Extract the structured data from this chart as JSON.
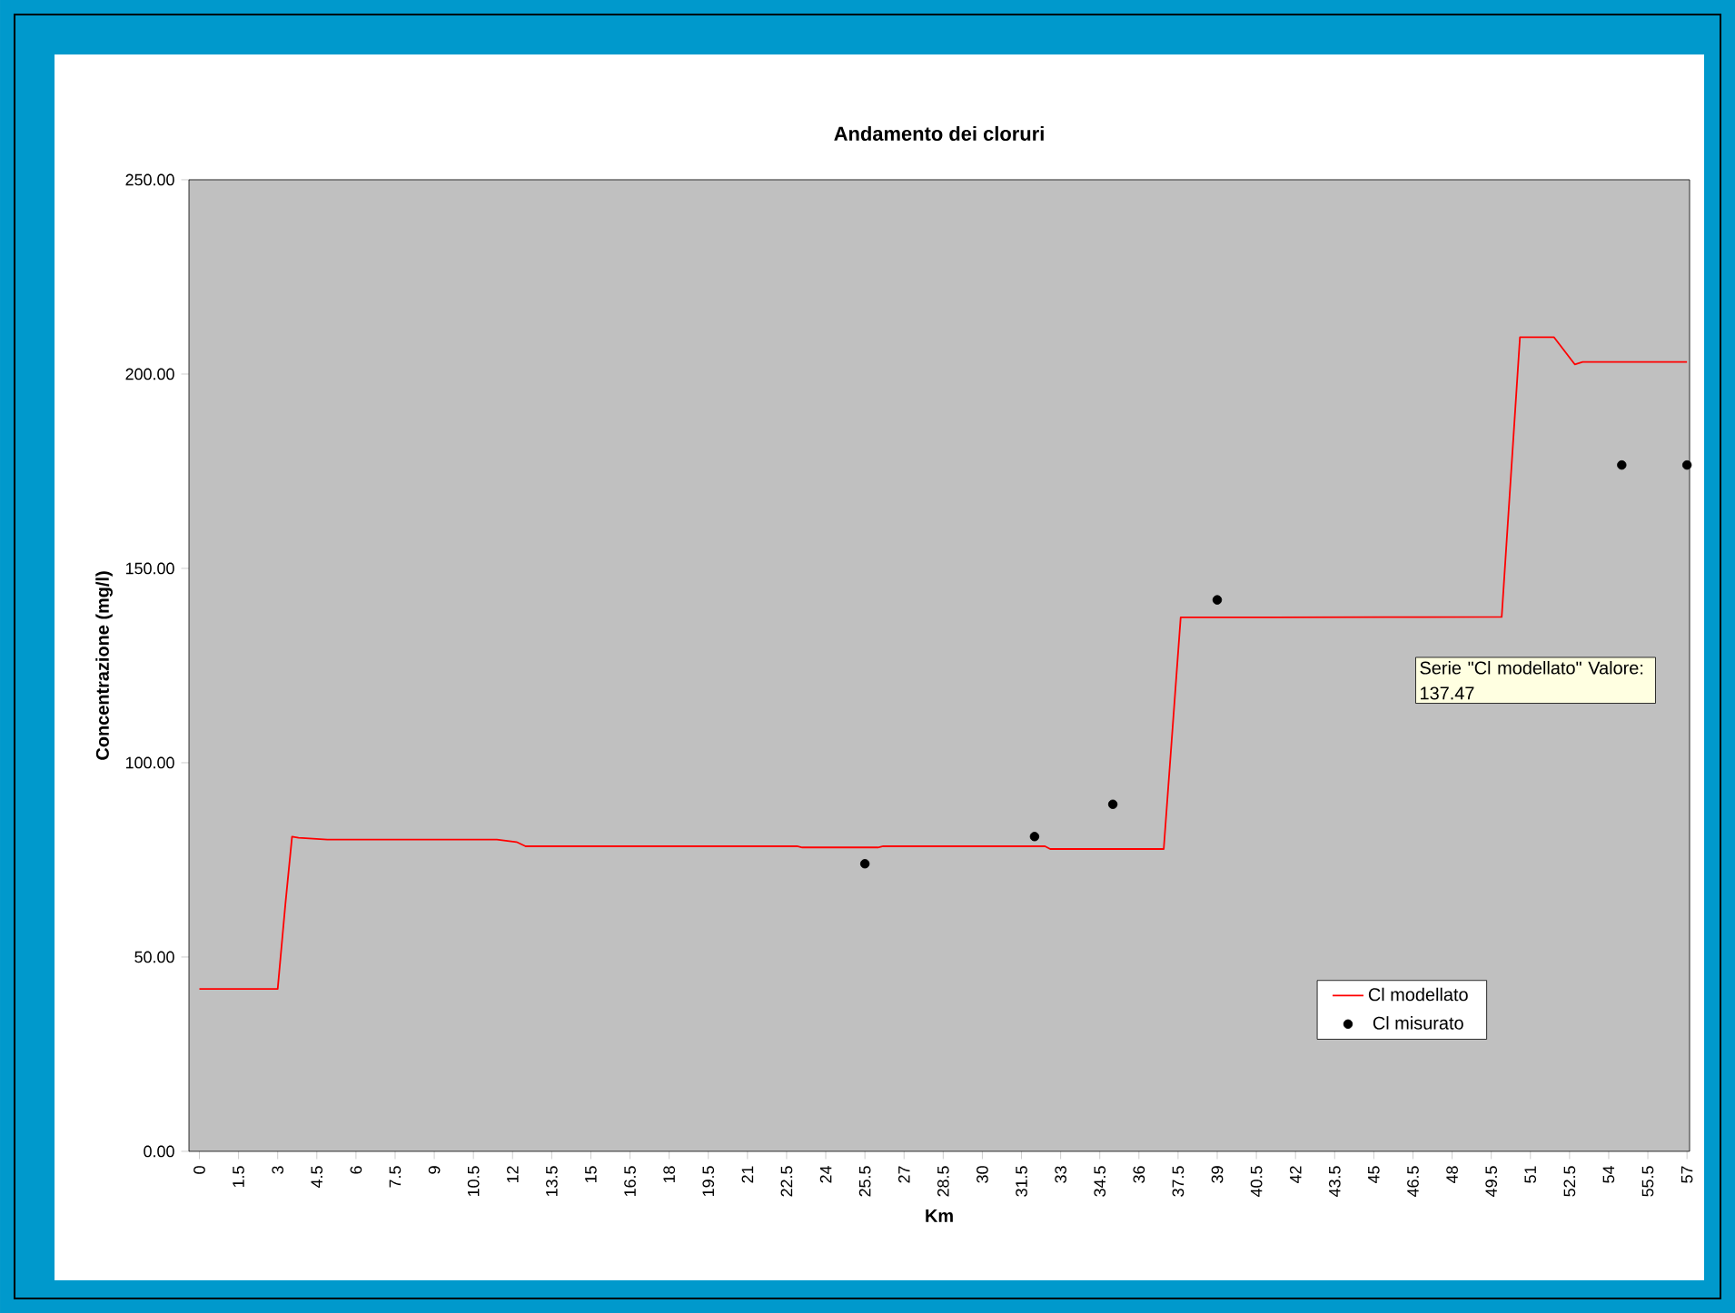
{
  "chart_data": {
    "type": "line",
    "title": "Andamento dei cloruri",
    "xlabel": "Km",
    "ylabel": "Concentrazione (mg/l)",
    "series": [
      {
        "name": "Cl modellato",
        "color": "#ff0000",
        "marker": "none",
        "line_style": "solid",
        "x": [
          0,
          3.0,
          3.3,
          3.55,
          3.8,
          4.9,
          11.4,
          12.15,
          12.5,
          22.9,
          23.1,
          26.0,
          26.2,
          32.4,
          32.6,
          36.95,
          37.6,
          41.0,
          46.8,
          49.9,
          50.6,
          51.9,
          52.7,
          53.0,
          57.0
        ],
        "values": [
          41.8,
          41.8,
          64.0,
          81.0,
          80.7,
          80.2,
          80.2,
          79.6,
          78.5,
          78.5,
          78.2,
          78.2,
          78.5,
          78.5,
          77.8,
          77.8,
          137.4,
          137.4,
          137.47,
          137.5,
          209.5,
          209.5,
          202.5,
          203.1,
          203.1
        ]
      },
      {
        "name": "Cl misurato",
        "type": "scatter",
        "color": "#000000",
        "marker": "circle",
        "x": [
          25.5,
          32.0,
          35.0,
          39.0,
          54.5,
          57.0
        ],
        "values": [
          74.0,
          81.0,
          89.3,
          141.9,
          176.6,
          176.6
        ]
      }
    ],
    "xlim": [
      -0.4,
      57.1
    ],
    "xticks": [
      0,
      1.5,
      3,
      4.5,
      6,
      7.5,
      9,
      10.5,
      12,
      13.5,
      15,
      16.5,
      18,
      19.5,
      21,
      22.5,
      24,
      25.5,
      27,
      28.5,
      30,
      31.5,
      33,
      34.5,
      36,
      37.5,
      39,
      40.5,
      42,
      43.5,
      45,
      46.5,
      48,
      49.5,
      51,
      52.5,
      54,
      55.5,
      57
    ],
    "ylim": [
      0,
      250
    ],
    "yticks": [
      {
        "value": 0,
        "label": "0.00"
      },
      {
        "value": 50,
        "label": "50.00"
      },
      {
        "value": 100,
        "label": "100.00"
      },
      {
        "value": 150,
        "label": "150.00"
      },
      {
        "value": 200,
        "label": "200.00"
      },
      {
        "value": 250,
        "label": "250.00"
      }
    ],
    "grid": false,
    "legend": "bottom right",
    "annotations": [
      {
        "text": "Serie \"Cl modellato\" Valore: 137.47",
        "x": 46.8,
        "y": 137.47
      }
    ]
  }
}
